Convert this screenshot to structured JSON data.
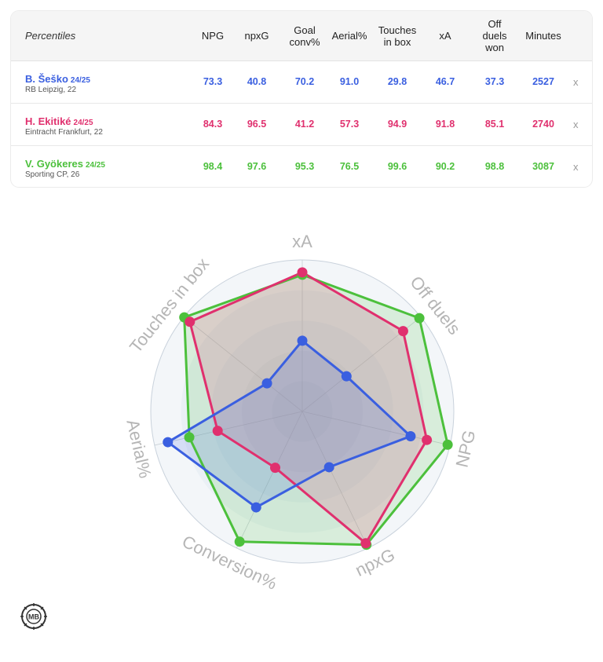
{
  "table": {
    "label_header": "Percentiles",
    "columns": [
      "NPG",
      "npxG",
      "Goal\nconv%",
      "Aerial%",
      "Touches\nin box",
      "xA",
      "Off\nduels\nwon",
      "Minutes"
    ],
    "remove_label": "x",
    "players": [
      {
        "name": "B. Šeško",
        "season": "24/25",
        "club": "RB Leipzig, 22",
        "color": "#3a5fe0",
        "values": [
          "73.3",
          "40.8",
          "70.2",
          "91.0",
          "29.8",
          "46.7",
          "37.3",
          "2527"
        ]
      },
      {
        "name": "H. Ekitiké",
        "season": "24/25",
        "club": "Eintracht Frankfurt, 22",
        "color": "#e0306e",
        "values": [
          "84.3",
          "96.5",
          "41.2",
          "57.3",
          "94.9",
          "91.8",
          "85.1",
          "2740"
        ]
      },
      {
        "name": "V. Gyökeres",
        "season": "24/25",
        "club": "Sporting CP, 26",
        "color": "#4cc03c",
        "values": [
          "98.4",
          "97.6",
          "95.3",
          "76.5",
          "99.6",
          "90.2",
          "98.8",
          "3087"
        ]
      }
    ]
  },
  "chart_data": {
    "type": "radar",
    "axes": [
      "xA",
      "Off duels",
      "NPG",
      "npxG",
      "Conversion%",
      "Aerial%",
      "Touches in box"
    ],
    "range": [
      0,
      100
    ],
    "series": [
      {
        "name": "B. Šeško",
        "color": "#3a5fe0",
        "values": [
          46.7,
          37.3,
          73.3,
          40.8,
          70.2,
          91.0,
          29.8
        ]
      },
      {
        "name": "H. Ekitiké",
        "color": "#e0306e",
        "values": [
          91.8,
          85.1,
          84.3,
          96.5,
          41.2,
          57.3,
          94.9
        ]
      },
      {
        "name": "V. Gyökeres",
        "color": "#4cc03c",
        "values": [
          90.2,
          98.8,
          98.4,
          97.6,
          95.3,
          76.5,
          99.6
        ]
      }
    ]
  },
  "logo": {
    "text": "MB"
  }
}
